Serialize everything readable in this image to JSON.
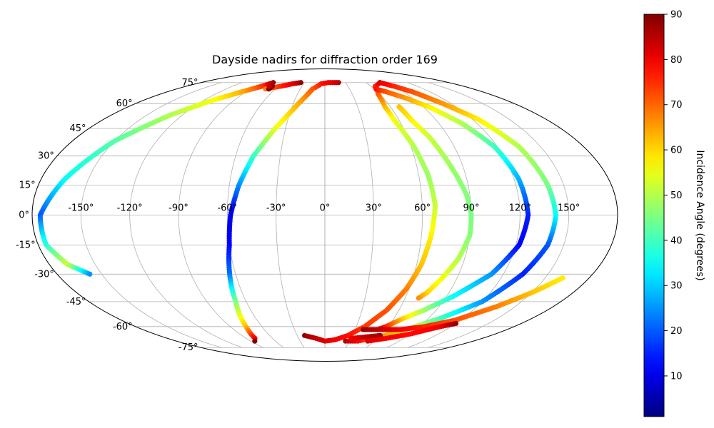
{
  "chart_data": {
    "type": "scatter",
    "projection": "mollweide",
    "title": "Dayside nadirs for diffraction order 169",
    "lon_ticks": [
      -150,
      -120,
      -90,
      -60,
      -30,
      0,
      30,
      60,
      90,
      120,
      150
    ],
    "lon_tick_labels": [
      "-150°",
      "-120°",
      "-90°",
      "-60°",
      "-30°",
      "0°",
      "30°",
      "60°",
      "90°",
      "120°",
      "150°"
    ],
    "lat_ticks": [
      -75,
      -60,
      -45,
      -30,
      -15,
      0,
      15,
      30,
      45,
      60,
      75
    ],
    "lat_tick_labels": [
      "-75°",
      "-60°",
      "-45°",
      "-30°",
      "-15°",
      "0°",
      "15°",
      "30°",
      "45°",
      "60°",
      "75°"
    ],
    "grid": true,
    "colormap": "jet",
    "colorbar": {
      "label": "Incidence Angle (degrees)",
      "vmin": 1,
      "vmax": 90,
      "ticks": [
        10,
        20,
        30,
        40,
        50,
        60,
        70,
        80,
        90
      ],
      "tick_labels": [
        "10",
        "20",
        "30",
        "40",
        "50",
        "60",
        "70",
        "80",
        "90"
      ]
    },
    "tracks": [
      {
        "points": [
          [
            -75,
            75,
            88
          ],
          [
            -82,
            72,
            75
          ],
          [
            -95,
            68,
            64
          ],
          [
            -112,
            62,
            56
          ],
          [
            -130,
            53,
            50
          ],
          [
            -150,
            38,
            42
          ],
          [
            -165,
            18,
            35
          ],
          [
            -175,
            0,
            20
          ],
          [
            -175,
            -15,
            38
          ],
          [
            -168,
            -25,
            52
          ],
          [
            -158,
            -30,
            25
          ]
        ]
      },
      {
        "points": [
          [
            -35,
            75,
            89
          ],
          [
            -45,
            74,
            82
          ],
          [
            -58,
            72,
            76
          ],
          [
            -72,
            70,
            68
          ]
        ]
      },
      {
        "points": [
          [
            -68,
            70,
            90
          ],
          [
            -68,
            72,
            88
          ],
          [
            -72,
            72,
            84
          ]
        ]
      },
      {
        "points": [
          [
            20,
            75,
            85
          ],
          [
            5,
            75,
            80
          ],
          [
            -5,
            74,
            78
          ],
          [
            -15,
            70,
            72
          ],
          [
            -25,
            60,
            64
          ],
          [
            -38,
            45,
            55
          ],
          [
            -48,
            30,
            40
          ],
          [
            -54,
            15,
            25
          ],
          [
            -58,
            0,
            10
          ],
          [
            -60,
            -15,
            12
          ],
          [
            -64,
            -30,
            22
          ],
          [
            -68,
            -45,
            45
          ],
          [
            -75,
            -60,
            62
          ],
          [
            -80,
            -68,
            80
          ],
          [
            -85,
            -70,
            90
          ]
        ]
      },
      {
        "points": [
          [
            -22,
            -66,
            88
          ],
          [
            -10,
            -68,
            84
          ],
          [
            0,
            -70,
            82
          ],
          [
            12,
            -69,
            80
          ],
          [
            25,
            -66,
            78
          ],
          [
            38,
            -60,
            74
          ],
          [
            50,
            -50,
            72
          ],
          [
            58,
            -38,
            68
          ],
          [
            63,
            -25,
            62
          ],
          [
            66,
            -10,
            58
          ],
          [
            68,
            5,
            52
          ],
          [
            66,
            20,
            48
          ],
          [
            62,
            35,
            50
          ],
          [
            56,
            50,
            55
          ],
          [
            55,
            58,
            62
          ],
          [
            58,
            66,
            70
          ],
          [
            65,
            72,
            75
          ],
          [
            80,
            75,
            82
          ]
        ]
      },
      {
        "points": [
          [
            80,
            75,
            82
          ],
          [
            90,
            72,
            76
          ],
          [
            100,
            68,
            72
          ],
          [
            112,
            60,
            66
          ],
          [
            125,
            50,
            58
          ],
          [
            135,
            35,
            50
          ],
          [
            140,
            15,
            45
          ],
          [
            142,
            0,
            35
          ],
          [
            140,
            -15,
            20
          ],
          [
            133,
            -30,
            15
          ],
          [
            120,
            -45,
            25
          ],
          [
            100,
            -55,
            40
          ],
          [
            80,
            -62,
            55
          ],
          [
            65,
            -66,
            65
          ],
          [
            40,
            -70,
            78
          ],
          [
            25,
            -70,
            85
          ]
        ]
      },
      {
        "points": [
          [
            68,
            58,
            62
          ],
          [
            70,
            50,
            58
          ],
          [
            76,
            40,
            52
          ],
          [
            82,
            25,
            48
          ],
          [
            88,
            10,
            46
          ],
          [
            90,
            0,
            45
          ],
          [
            90,
            -10,
            46
          ],
          [
            86,
            -22,
            50
          ],
          [
            80,
            -32,
            55
          ],
          [
            74,
            -40,
            60
          ],
          [
            70,
            -43,
            66
          ]
        ]
      },
      {
        "points": [
          [
            62,
            70,
            78
          ],
          [
            70,
            68,
            72
          ],
          [
            82,
            64,
            66
          ],
          [
            95,
            58,
            58
          ],
          [
            108,
            48,
            50
          ],
          [
            118,
            35,
            40
          ],
          [
            123,
            18,
            28
          ],
          [
            125,
            0,
            15
          ],
          [
            122,
            -15,
            12
          ],
          [
            112,
            -30,
            25
          ],
          [
            95,
            -42,
            35
          ],
          [
            80,
            -50,
            48
          ],
          [
            68,
            -55,
            60
          ],
          [
            58,
            -60,
            75
          ],
          [
            52,
            -62,
            85
          ]
        ]
      },
      {
        "points": [
          [
            38,
            -62,
            88
          ],
          [
            55,
            -62,
            84
          ],
          [
            75,
            -62,
            80
          ],
          [
            95,
            -60,
            76
          ],
          [
            115,
            -56,
            72
          ],
          [
            135,
            -48,
            68
          ],
          [
            150,
            -40,
            62
          ],
          [
            162,
            -32,
            58
          ]
        ]
      },
      {
        "points": [
          [
            30,
            -68,
            80
          ],
          [
            45,
            -67,
            84
          ],
          [
            60,
            -66,
            88
          ]
        ]
      },
      {
        "points": [
          [
            52,
            -70,
            82
          ],
          [
            70,
            -68,
            80
          ],
          [
            90,
            -65,
            78
          ],
          [
            110,
            -60,
            80
          ],
          [
            120,
            -58,
            88
          ]
        ]
      }
    ]
  }
}
